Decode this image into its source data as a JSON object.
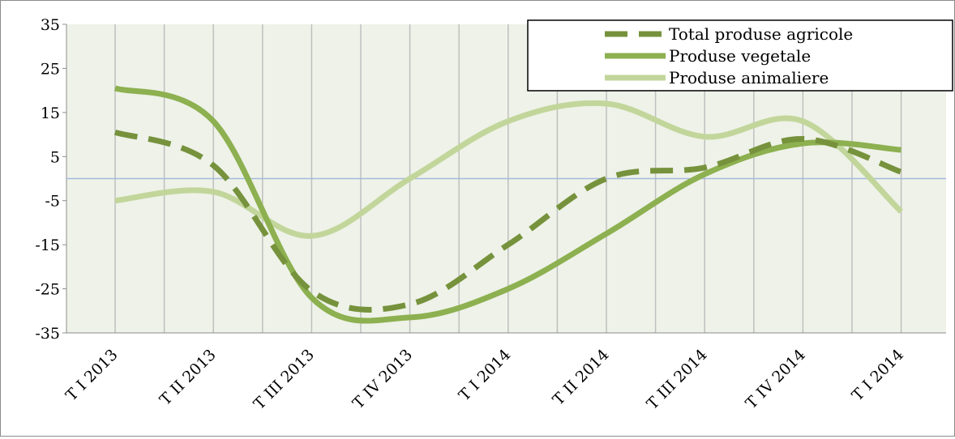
{
  "chart_data": {
    "type": "line",
    "categories": [
      "T I 2013",
      "T II 2013",
      "T III 2013",
      "T IV 2013",
      "T I 2014",
      "T II 2014",
      "T III 2014",
      "T IV 2014",
      "T I 2014"
    ],
    "series": [
      {
        "name": "Total produse agricole",
        "values": [
          10.5,
          3,
          -25.5,
          -28.5,
          -15,
          0,
          2.5,
          9,
          1.5
        ],
        "color": "#76923c",
        "style": "dashed"
      },
      {
        "name": "Produse vegetale",
        "values": [
          20.5,
          13,
          -27,
          -31.5,
          -25,
          -12.5,
          1,
          8,
          6.5
        ],
        "color": "#8db050",
        "style": "solid"
      },
      {
        "name": "Produse animaliere",
        "values": [
          -5,
          -3,
          -13,
          0,
          13,
          17,
          9.5,
          13,
          -7.5
        ],
        "color": "#c2d69b",
        "style": "solid"
      }
    ],
    "y_ticks": [
      "35",
      "25",
      "15",
      "5",
      "-5",
      "-15",
      "-25",
      "-35"
    ],
    "ylim": [
      -35,
      35
    ],
    "reference_line": 0,
    "grid": "vertical",
    "legend_position": "top-right",
    "colors": {
      "plot_background": "#eef2e8",
      "gridline": "#bfbfbf",
      "reference_line": "#a7b8de"
    }
  }
}
